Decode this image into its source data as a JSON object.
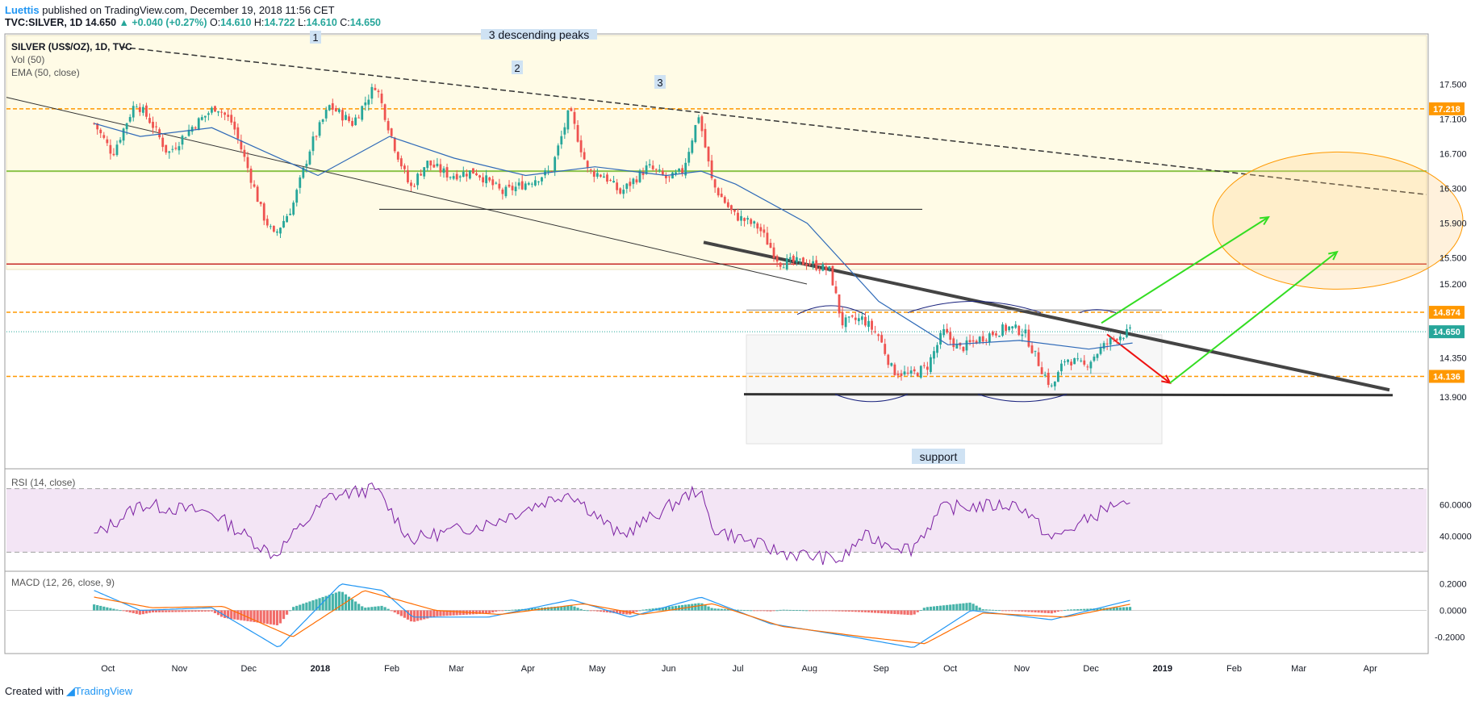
{
  "header": {
    "author": "Luettis",
    "published": " published on TradingView.com, December 19, 2018 11:56 CET",
    "symbol": "TVC:SILVER, 1D",
    "last": "14.650",
    "change": "▲ +0.040 (+0.27%)",
    "o_label": "O:",
    "o": "14.610",
    "h_label": "H:",
    "h": "14.722",
    "l_label": "L:",
    "l": "14.610",
    "c_label": "C:",
    "c": "14.650"
  },
  "footer": {
    "text": "Created with",
    "brand": "TradingView"
  },
  "legend": {
    "title": "SILVER (US$/OZ), 1D, TVC",
    "vol": "Vol (50)",
    "ema": "EMA (50, close)",
    "rsi": "RSI (14, close)",
    "macd": "MACD (12, 26, close, 9)"
  },
  "annotations": {
    "peak_labels": [
      "1",
      "2",
      "3"
    ],
    "peaks_text": "3 descending peaks",
    "support_text": "support"
  },
  "colors": {
    "up": "#26a69a",
    "down": "#ef5350",
    "ema": "#2f6ab8",
    "level_orange": "#ff9800",
    "level_red": "#c62828",
    "level_green": "#8bc34a",
    "rsi": "#7b1fa2",
    "macd": "#2196f3",
    "signal": "#ff6d00",
    "arrow_green": "#33dd22",
    "arrow_red": "#ee1111"
  },
  "chart_data": [
    {
      "type": "candlestick",
      "name": "SILVER (US$/OZ), 1D, TVC",
      "x_ticks": [
        "Oct",
        "Nov",
        "Dec",
        "2018",
        "Feb",
        "Mar",
        "Apr",
        "May",
        "Jun",
        "Jul",
        "Aug",
        "Sep",
        "Oct",
        "Nov",
        "Dec",
        "2019",
        "Feb",
        "Mar",
        "Apr"
      ],
      "y_ticks": [
        17.5,
        17.1,
        16.7,
        16.3,
        15.9,
        15.5,
        15.2,
        14.35,
        13.9
      ],
      "ylim": [
        13.75,
        17.95
      ],
      "price_labels": [
        "17.218",
        "14.874",
        "14.650",
        "14.136"
      ],
      "levels": [
        {
          "price": 17.218,
          "style": "dashed-orange"
        },
        {
          "price": 16.5,
          "style": "solid-green"
        },
        {
          "price": 15.43,
          "style": "solid-red"
        },
        {
          "price": 14.874,
          "style": "dashed-orange"
        },
        {
          "price": 14.65,
          "style": "dotted-teal"
        },
        {
          "price": 14.136,
          "style": "dashed-orange"
        }
      ],
      "close_path": [
        [
          "2017-09-25",
          17.05
        ],
        [
          "2017-10-03",
          16.7
        ],
        [
          "2017-10-13",
          17.3
        ],
        [
          "2017-10-20",
          17.05
        ],
        [
          "2017-10-27",
          16.7
        ],
        [
          "2017-11-06",
          17.0
        ],
        [
          "2017-11-17",
          17.25
        ],
        [
          "2017-11-24",
          17.05
        ],
        [
          "2017-12-01",
          16.5
        ],
        [
          "2017-12-07",
          16.0
        ],
        [
          "2017-12-12",
          15.75
        ],
        [
          "2017-12-20",
          16.1
        ],
        [
          "2017-12-28",
          16.8
        ],
        [
          "2018-01-05",
          17.25
        ],
        [
          "2018-01-15",
          17.05
        ],
        [
          "2018-01-25",
          17.5
        ],
        [
          "2018-02-02",
          16.8
        ],
        [
          "2018-02-09",
          16.3
        ],
        [
          "2018-02-16",
          16.6
        ],
        [
          "2018-02-26",
          16.45
        ],
        [
          "2018-03-09",
          16.5
        ],
        [
          "2018-03-21",
          16.25
        ],
        [
          "2018-03-30",
          16.35
        ],
        [
          "2018-04-11",
          16.5
        ],
        [
          "2018-04-19",
          17.2
        ],
        [
          "2018-04-27",
          16.5
        ],
        [
          "2018-05-04",
          16.45
        ],
        [
          "2018-05-11",
          16.25
        ],
        [
          "2018-05-23",
          16.55
        ],
        [
          "2018-06-01",
          16.4
        ],
        [
          "2018-06-07",
          16.5
        ],
        [
          "2018-06-14",
          17.15
        ],
        [
          "2018-06-20",
          16.35
        ],
        [
          "2018-06-29",
          16.0
        ],
        [
          "2018-07-10",
          15.85
        ],
        [
          "2018-07-19",
          15.45
        ],
        [
          "2018-07-31",
          15.45
        ],
        [
          "2018-08-10",
          15.35
        ],
        [
          "2018-08-15",
          14.75
        ],
        [
          "2018-08-24",
          14.8
        ],
        [
          "2018-08-31",
          14.6
        ],
        [
          "2018-09-06",
          14.2
        ],
        [
          "2018-09-14",
          14.15
        ],
        [
          "2018-09-21",
          14.25
        ],
        [
          "2018-09-28",
          14.65
        ],
        [
          "2018-10-05",
          14.45
        ],
        [
          "2018-10-16",
          14.6
        ],
        [
          "2018-10-26",
          14.7
        ],
        [
          "2018-11-02",
          14.65
        ],
        [
          "2018-11-09",
          14.25
        ],
        [
          "2018-11-14",
          14.0
        ],
        [
          "2018-11-20",
          14.35
        ],
        [
          "2018-11-28",
          14.25
        ],
        [
          "2018-12-05",
          14.45
        ],
        [
          "2018-12-12",
          14.6
        ],
        [
          "2018-12-19",
          14.65
        ]
      ],
      "ema50_path": [
        [
          "2017-09-25",
          17.05
        ],
        [
          "2017-10-15",
          16.9
        ],
        [
          "2017-11-15",
          17.0
        ],
        [
          "2017-12-10",
          16.7
        ],
        [
          "2017-12-31",
          16.45
        ],
        [
          "2018-01-31",
          16.9
        ],
        [
          "2018-02-28",
          16.65
        ],
        [
          "2018-03-31",
          16.45
        ],
        [
          "2018-04-30",
          16.55
        ],
        [
          "2018-05-31",
          16.45
        ],
        [
          "2018-06-15",
          16.5
        ],
        [
          "2018-06-30",
          16.35
        ],
        [
          "2018-07-31",
          15.9
        ],
        [
          "2018-08-31",
          15.0
        ],
        [
          "2018-09-30",
          14.5
        ],
        [
          "2018-10-31",
          14.55
        ],
        [
          "2018-11-30",
          14.45
        ],
        [
          "2018-12-19",
          14.52
        ]
      ]
    },
    {
      "type": "line",
      "name": "RSI (14, close)",
      "y_ticks": [
        60.0,
        40.0
      ],
      "ylim": [
        20,
        80
      ],
      "band": [
        30,
        70
      ],
      "points": [
        [
          "2017-09-25",
          40
        ],
        [
          "2017-10-15",
          60
        ],
        [
          "2017-11-15",
          55
        ],
        [
          "2017-12-12",
          28
        ],
        [
          "2018-01-05",
          65
        ],
        [
          "2018-01-25",
          70
        ],
        [
          "2018-02-09",
          38
        ],
        [
          "2018-03-15",
          48
        ],
        [
          "2018-04-19",
          68
        ],
        [
          "2018-05-11",
          40
        ],
        [
          "2018-06-14",
          70
        ],
        [
          "2018-06-20",
          45
        ],
        [
          "2018-07-19",
          30
        ],
        [
          "2018-08-15",
          25
        ],
        [
          "2018-08-24",
          40
        ],
        [
          "2018-09-14",
          32
        ],
        [
          "2018-09-28",
          58
        ],
        [
          "2018-10-31",
          60
        ],
        [
          "2018-11-14",
          38
        ],
        [
          "2018-12-12",
          61
        ],
        [
          "2018-12-19",
          56
        ]
      ]
    },
    {
      "type": "line",
      "name": "MACD (12, 26, close, 9)",
      "y_ticks": [
        0.2,
        0.0,
        -0.2
      ],
      "ylim": [
        -0.3,
        0.27
      ],
      "macd_points": [
        [
          "2017-09-25",
          0.15
        ],
        [
          "2017-10-15",
          0.0
        ],
        [
          "2017-11-15",
          0.02
        ],
        [
          "2017-12-14",
          -0.28
        ],
        [
          "2018-01-10",
          0.2
        ],
        [
          "2018-01-28",
          0.15
        ],
        [
          "2018-02-10",
          -0.05
        ],
        [
          "2018-03-15",
          -0.05
        ],
        [
          "2018-04-20",
          0.08
        ],
        [
          "2018-05-15",
          -0.05
        ],
        [
          "2018-06-15",
          0.1
        ],
        [
          "2018-07-15",
          -0.1
        ],
        [
          "2018-08-20",
          -0.2
        ],
        [
          "2018-09-15",
          -0.28
        ],
        [
          "2018-10-10",
          0.0
        ],
        [
          "2018-11-14",
          -0.07
        ],
        [
          "2018-12-19",
          0.08
        ]
      ],
      "signal_points": [
        [
          "2017-09-25",
          0.1
        ],
        [
          "2017-10-20",
          0.02
        ],
        [
          "2017-11-20",
          0.03
        ],
        [
          "2017-12-20",
          -0.2
        ],
        [
          "2018-01-20",
          0.15
        ],
        [
          "2018-02-20",
          0.0
        ],
        [
          "2018-03-20",
          -0.03
        ],
        [
          "2018-04-25",
          0.05
        ],
        [
          "2018-05-20",
          -0.03
        ],
        [
          "2018-06-20",
          0.05
        ],
        [
          "2018-07-20",
          -0.12
        ],
        [
          "2018-08-25",
          -0.2
        ],
        [
          "2018-09-20",
          -0.25
        ],
        [
          "2018-10-15",
          -0.02
        ],
        [
          "2018-11-20",
          -0.05
        ],
        [
          "2018-12-19",
          0.05
        ]
      ]
    }
  ]
}
